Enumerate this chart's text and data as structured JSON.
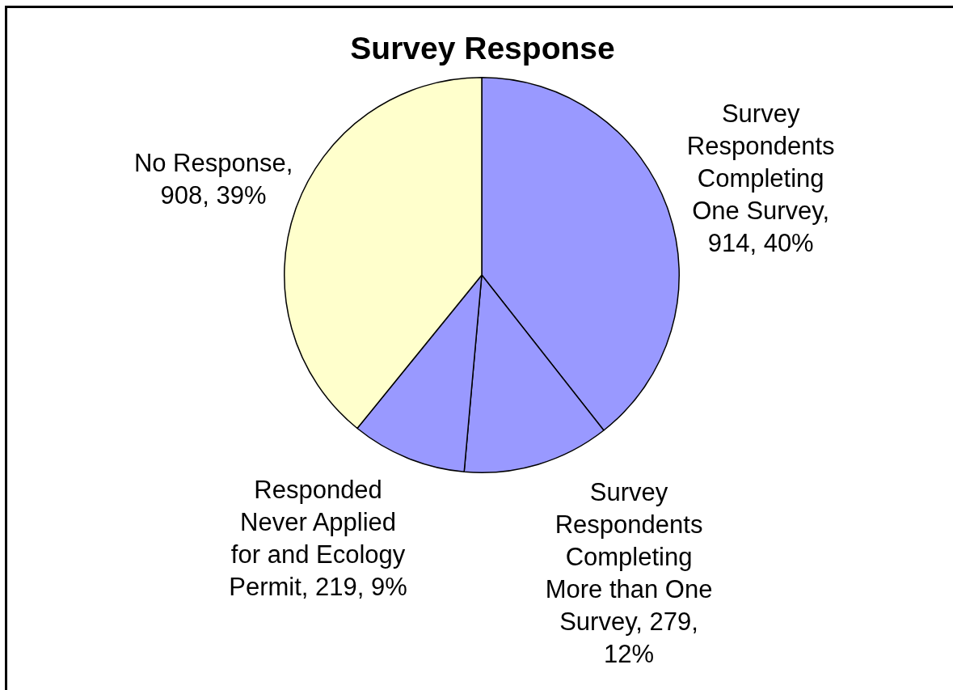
{
  "chart_data": {
    "type": "pie",
    "title": "Survey Response",
    "categories": [
      "Survey Respondents Completing One Survey",
      "Survey Respondents Completing More than One Survey",
      "Responded Never Applied for and Ecology Permit",
      "No Response"
    ],
    "values": [
      914,
      279,
      219,
      908
    ],
    "value_labels": [
      ", 914, 40%",
      ", 279, 12%",
      ", 219, 9%",
      ", 908, 39%"
    ],
    "colors": [
      "#9999ff",
      "#9999ff",
      "#9999ff",
      "#ffffcc"
    ]
  }
}
